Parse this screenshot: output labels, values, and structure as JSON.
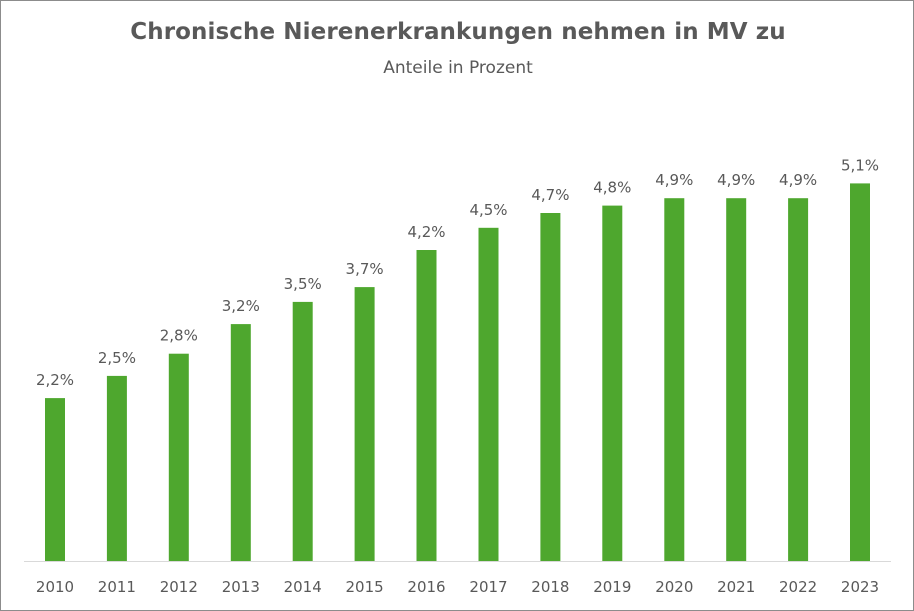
{
  "chart_data": {
    "type": "bar",
    "title": "Chronische Nierenerkrankungen nehmen in MV zu",
    "subtitle": "Anteile in Prozent",
    "categories": [
      "2010",
      "2011",
      "2012",
      "2013",
      "2014",
      "2015",
      "2016",
      "2017",
      "2018",
      "2019",
      "2020",
      "2021",
      "2022",
      "2023"
    ],
    "values": [
      2.2,
      2.5,
      2.8,
      3.2,
      3.5,
      3.7,
      4.2,
      4.5,
      4.7,
      4.8,
      4.9,
      4.9,
      4.9,
      5.1
    ],
    "data_labels": [
      "2,2%",
      "2,5%",
      "2,8%",
      "3,2%",
      "3,5%",
      "3,7%",
      "4,2%",
      "4,5%",
      "4,7%",
      "4,8%",
      "4,9%",
      "4,9%",
      "4,9%",
      "5,1%"
    ],
    "ylim": [
      0,
      5.2
    ],
    "grid": false,
    "legend": "none",
    "bar_color": "#4ea72e",
    "text_color": "#595959"
  }
}
